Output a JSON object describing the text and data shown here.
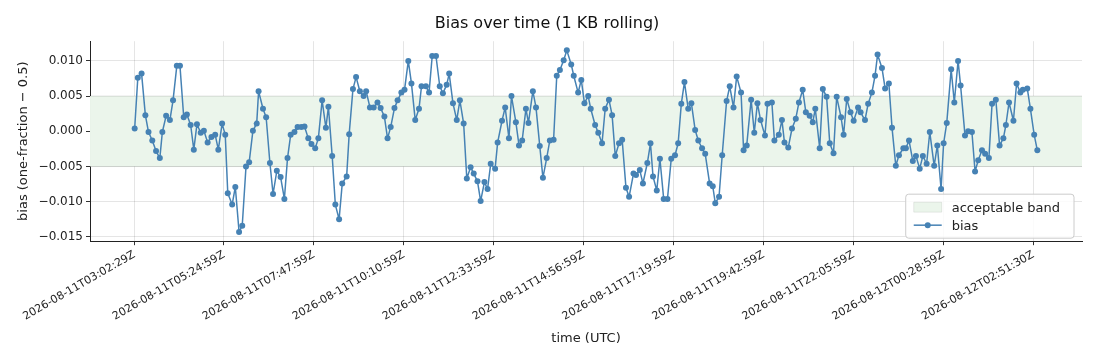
{
  "chart_data": {
    "type": "line",
    "title": "Bias over time (1 KB rolling)",
    "xlabel": "time (UTC)",
    "ylabel": "bias (one-fraction − 0.5)",
    "xlim": [
      "2026-08-11T01:52",
      "2026-08-12T04:09"
    ],
    "ylim": [
      -0.0156,
      0.0128
    ],
    "xticks": [
      {
        "value": "2026-08-11T03:02:29",
        "label": "2026-08-11T03:02:29Z"
      },
      {
        "value": "2026-08-11T05:24:59",
        "label": "2026-08-11T05:24:59Z"
      },
      {
        "value": "2026-08-11T07:47:59",
        "label": "2026-08-11T07:47:59Z"
      },
      {
        "value": "2026-08-11T10:10:59",
        "label": "2026-08-11T10:10:59Z"
      },
      {
        "value": "2026-08-11T12:33:59",
        "label": "2026-08-11T12:33:59Z"
      },
      {
        "value": "2026-08-11T14:56:59",
        "label": "2026-08-11T14:56:59Z"
      },
      {
        "value": "2026-08-11T17:19:59",
        "label": "2026-08-11T17:19:59Z"
      },
      {
        "value": "2026-08-11T19:42:59",
        "label": "2026-08-11T19:42:59Z"
      },
      {
        "value": "2026-08-11T22:05:59",
        "label": "2026-08-11T22:05:59Z"
      },
      {
        "value": "2026-08-12T00:28:59",
        "label": "2026-08-12T00:28:59Z"
      },
      {
        "value": "2026-08-12T02:51:30",
        "label": "2026-08-12T02:51:30Z"
      }
    ],
    "yticks": [
      {
        "value": -0.015,
        "label": "−0.015"
      },
      {
        "value": -0.01,
        "label": "−0.010"
      },
      {
        "value": -0.005,
        "label": "−0.005"
      },
      {
        "value": 0,
        "label": "0.000"
      },
      {
        "value": 0.005,
        "label": "0.005"
      },
      {
        "value": 0.01,
        "label": "0.010"
      }
    ],
    "grid": true,
    "legend": "bottom right",
    "marker": "circle",
    "line_style": "solid",
    "bands": [
      {
        "axis": "y",
        "from": -0.005,
        "to": 0.005,
        "label": "acceptable band",
        "color": "#ebf5eb"
      }
    ],
    "series": [
      {
        "name": "bias",
        "color": "#4682b4",
        "x": [
          "2026-08-11T03:03",
          "2026-08-11T03:08",
          "2026-08-11T03:14",
          "2026-08-11T03:20",
          "2026-08-11T03:25",
          "2026-08-11T03:31",
          "2026-08-11T03:37",
          "2026-08-11T03:43",
          "2026-08-11T03:47",
          "2026-08-11T03:53",
          "2026-08-11T03:59",
          "2026-08-11T04:04",
          "2026-08-11T04:10",
          "2026-08-11T04:15",
          "2026-08-11T04:21",
          "2026-08-11T04:26",
          "2026-08-11T04:32",
          "2026-08-11T04:37",
          "2026-08-11T04:42",
          "2026-08-11T04:48",
          "2026-08-11T04:53",
          "2026-08-11T04:59",
          "2026-08-11T05:05",
          "2026-08-11T05:11",
          "2026-08-11T05:16",
          "2026-08-11T05:22",
          "2026-08-11T05:27",
          "2026-08-11T05:31",
          "2026-08-11T05:38",
          "2026-08-11T05:43",
          "2026-08-11T05:49",
          "2026-08-11T05:54",
          "2026-08-11T06:00",
          "2026-08-11T06:05",
          "2026-08-11T06:11",
          "2026-08-11T06:17",
          "2026-08-11T06:20",
          "2026-08-11T06:27",
          "2026-08-11T06:32",
          "2026-08-11T06:38",
          "2026-08-11T06:43",
          "2026-08-11T06:49",
          "2026-08-11T06:55",
          "2026-08-11T07:01",
          "2026-08-11T07:06",
          "2026-08-11T07:11",
          "2026-08-11T07:17",
          "2026-08-11T07:22",
          "2026-08-11T07:28",
          "2026-08-11T07:33",
          "2026-08-11T07:39",
          "2026-08-11T07:44",
          "2026-08-11T07:50",
          "2026-08-11T07:55",
          "2026-08-11T08:01",
          "2026-08-11T08:07",
          "2026-08-11T08:11",
          "2026-08-11T08:17",
          "2026-08-11T08:22",
          "2026-08-11T08:28",
          "2026-08-11T08:33",
          "2026-08-11T08:40",
          "2026-08-11T08:44",
          "2026-08-11T08:50",
          "2026-08-11T08:55",
          "2026-08-11T09:01",
          "2026-08-11T09:07",
          "2026-08-11T09:11",
          "2026-08-11T09:17",
          "2026-08-11T09:23",
          "2026-08-11T09:29",
          "2026-08-11T09:34",
          "2026-08-11T09:40",
          "2026-08-11T09:45",
          "2026-08-11T09:50",
          "2026-08-11T09:56",
          "2026-08-11T10:01",
          "2026-08-11T10:07",
          "2026-08-11T10:12",
          "2026-08-11T10:18",
          "2026-08-11T10:23",
          "2026-08-11T10:29",
          "2026-08-11T10:35",
          "2026-08-11T10:39",
          "2026-08-11T10:46",
          "2026-08-11T10:51",
          "2026-08-11T10:56",
          "2026-08-11T11:02",
          "2026-08-11T11:08",
          "2026-08-11T11:13",
          "2026-08-11T11:19",
          "2026-08-11T11:23",
          "2026-08-11T11:29",
          "2026-08-11T11:35",
          "2026-08-11T11:40",
          "2026-08-11T11:46",
          "2026-08-11T11:51",
          "2026-08-11T11:57",
          "2026-08-11T12:02",
          "2026-08-11T12:08",
          "2026-08-11T12:13",
          "2026-08-11T12:19",
          "2026-08-11T12:24",
          "2026-08-11T12:29",
          "2026-08-11T12:36",
          "2026-08-11T12:40",
          "2026-08-11T12:47",
          "2026-08-11T12:52",
          "2026-08-11T12:58",
          "2026-08-11T13:02",
          "2026-08-11T13:09",
          "2026-08-11T13:14",
          "2026-08-11T13:19",
          "2026-08-11T13:25",
          "2026-08-11T13:29",
          "2026-08-11T13:36",
          "2026-08-11T13:41",
          "2026-08-11T13:47",
          "2026-08-11T13:52",
          "2026-08-11T13:58",
          "2026-08-11T14:03",
          "2026-08-11T14:09",
          "2026-08-11T14:14",
          "2026-08-11T14:19",
          "2026-08-11T14:25",
          "2026-08-11T14:30",
          "2026-08-11T14:37",
          "2026-08-11T14:41",
          "2026-08-11T14:48",
          "2026-08-11T14:53",
          "2026-08-11T14:58",
          "2026-08-11T15:04",
          "2026-08-11T15:08",
          "2026-08-11T15:15",
          "2026-08-11T15:20",
          "2026-08-11T15:26",
          "2026-08-11T15:31",
          "2026-08-11T15:37",
          "2026-08-11T15:42",
          "2026-08-11T15:47",
          "2026-08-11T15:53",
          "2026-08-11T15:58",
          "2026-08-11T16:04",
          "2026-08-11T16:09",
          "2026-08-11T16:16",
          "2026-08-11T16:20",
          "2026-08-11T16:26",
          "2026-08-11T16:31",
          "2026-08-11T16:38",
          "2026-08-11T16:43",
          "2026-08-11T16:47",
          "2026-08-11T16:53",
          "2026-08-11T16:58",
          "2026-08-11T17:04",
          "2026-08-11T17:10",
          "2026-08-11T17:16",
          "2026-08-11T17:22",
          "2026-08-11T17:27",
          "2026-08-11T17:32",
          "2026-08-11T17:37",
          "2026-08-11T17:43",
          "2026-08-11T17:48",
          "2026-08-11T17:54",
          "2026-08-11T17:59",
          "2026-08-11T18:05",
          "2026-08-11T18:10",
          "2026-08-11T18:17",
          "2026-08-11T18:22",
          "2026-08-11T18:26",
          "2026-08-11T18:32",
          "2026-08-11T18:37",
          "2026-08-11T18:44",
          "2026-08-11T18:49",
          "2026-08-11T18:55",
          "2026-08-11T19:00",
          "2026-08-11T19:07",
          "2026-08-11T19:11",
          "2026-08-11T19:16",
          "2026-08-11T19:23",
          "2026-08-11T19:28",
          "2026-08-11T19:33",
          "2026-08-11T19:38",
          "2026-08-11T19:45",
          "2026-08-11T19:49",
          "2026-08-11T19:56",
          "2026-08-11T20:00",
          "2026-08-11T20:07",
          "2026-08-11T20:12",
          "2026-08-11T20:16",
          "2026-08-11T20:22",
          "2026-08-11T20:28",
          "2026-08-11T20:34",
          "2026-08-11T20:39",
          "2026-08-11T20:45",
          "2026-08-11T20:50",
          "2026-08-11T20:56",
          "2026-08-11T21:01",
          "2026-08-11T21:05",
          "2026-08-11T21:12",
          "2026-08-11T21:17",
          "2026-08-11T21:23",
          "2026-08-11T21:28",
          "2026-08-11T21:34",
          "2026-08-11T21:39",
          "2026-08-11T21:46",
          "2026-08-11T21:50",
          "2026-08-11T21:55",
          "2026-08-11T22:01",
          "2026-08-11T22:06",
          "2026-08-11T22:13",
          "2026-08-11T22:17",
          "2026-08-11T22:24",
          "2026-08-11T22:29",
          "2026-08-11T22:35",
          "2026-08-11T22:40",
          "2026-08-11T22:44",
          "2026-08-11T22:51",
          "2026-08-11T22:56",
          "2026-08-11T23:02",
          "2026-08-11T23:07",
          "2026-08-11T23:13",
          "2026-08-11T23:18",
          "2026-08-11T23:25",
          "2026-08-11T23:29",
          "2026-08-11T23:34",
          "2026-08-11T23:40",
          "2026-08-11T23:45",
          "2026-08-11T23:51",
          "2026-08-11T23:56",
          "2026-08-12T00:02",
          "2026-08-12T00:07",
          "2026-08-12T00:14",
          "2026-08-12T00:19",
          "2026-08-12T00:25",
          "2026-08-12T00:29",
          "2026-08-12T00:34",
          "2026-08-12T00:41",
          "2026-08-12T00:46",
          "2026-08-12T00:52",
          "2026-08-12T00:56",
          "2026-08-12T01:03",
          "2026-08-12T01:08",
          "2026-08-12T01:14",
          "2026-08-12T01:19",
          "2026-08-12T01:24",
          "2026-08-12T01:30",
          "2026-08-12T01:35",
          "2026-08-12T01:41",
          "2026-08-12T01:46",
          "2026-08-12T01:52",
          "2026-08-12T01:58",
          "2026-08-12T02:04",
          "2026-08-12T02:08",
          "2026-08-12T02:13",
          "2026-08-12T02:20",
          "2026-08-12T02:25",
          "2026-08-12T02:31",
          "2026-08-12T02:35",
          "2026-08-12T02:42",
          "2026-08-12T02:47",
          "2026-08-12T02:53",
          "2026-08-12T02:58"
        ],
        "values": [
          0.0004,
          0.0076,
          0.0082,
          0.0023,
          -0.0001,
          -0.0013,
          -0.0028,
          -0.0038,
          -0.0001,
          0.0022,
          0.0016,
          0.0044,
          0.0093,
          0.0093,
          0.002,
          0.0024,
          0.0009,
          -0.0026,
          0.001,
          -0.0002,
          0.0001,
          -0.0016,
          -0.0008,
          -0.0005,
          -0.0026,
          0.0011,
          -0.0005,
          -0.0088,
          -0.0104,
          -0.0079,
          -0.0143,
          -0.0134,
          -0.005,
          -0.0044,
          0.0001,
          0.0011,
          0.0057,
          0.0032,
          0.002,
          -0.0045,
          -0.0089,
          -0.0056,
          -0.0065,
          -0.0096,
          -0.0038,
          -0.0005,
          -0.0001,
          0.0006,
          0.0006,
          0.0007,
          -0.001,
          -0.0018,
          -0.0024,
          -0.001,
          0.0044,
          0.0005,
          0.0035,
          -0.0035,
          -0.0104,
          -0.0125,
          -0.0074,
          -0.0064,
          -0.0004,
          0.006,
          0.0077,
          0.0057,
          0.005,
          0.0057,
          0.0034,
          0.0034,
          0.0041,
          0.0033,
          0.0021,
          -0.001,
          0.0006,
          0.0033,
          0.0044,
          0.0055,
          0.0059,
          0.01,
          0.0068,
          0.0016,
          0.0032,
          0.0064,
          0.0064,
          0.0055,
          0.0107,
          0.0107,
          0.0064,
          0.0054,
          0.0066,
          0.0082,
          0.004,
          0.0016,
          0.0044,
          0.0011,
          -0.0067,
          -0.0051,
          -0.006,
          -0.0071,
          -0.0099,
          -0.0072,
          -0.0082,
          -0.0046,
          -0.0053,
          -0.0016,
          0.0015,
          0.0034,
          -0.001,
          0.005,
          0.0013,
          -0.002,
          -0.0013,
          0.0032,
          0.0012,
          0.0057,
          0.0034,
          -0.0021,
          -0.0066,
          -0.0038,
          -0.0013,
          -0.0012,
          0.0079,
          0.0087,
          0.0101,
          0.0115,
          0.0095,
          0.0079,
          0.0055,
          0.0073,
          0.004,
          0.005,
          0.0032,
          0.0009,
          -0.0002,
          -0.0017,
          0.0032,
          0.0045,
          0.0023,
          -0.0035,
          -0.0017,
          -0.0012,
          -0.008,
          -0.0093,
          -0.006,
          -0.0062,
          -0.0055,
          -0.0074,
          -0.0045,
          -0.0017,
          -0.0064,
          -0.0084,
          -0.0039,
          -0.0096,
          -0.0096,
          -0.0039,
          -0.0034,
          -0.0017,
          0.0039,
          0.007,
          0.0032,
          0.004,
          0.0002,
          -0.0013,
          -0.0024,
          -0.0032,
          -0.0074,
          -0.0078,
          -0.0102,
          -0.0093,
          -0.0034,
          0.0043,
          0.0064,
          0.0034,
          0.0078,
          0.0055,
          -0.0027,
          -0.002,
          0.0045,
          -0.0002,
          0.004,
          0.0016,
          -0.0006,
          0.0039,
          0.0041,
          -0.0013,
          -0.0005,
          0.0016,
          -0.0016,
          -0.0023,
          0.0004,
          0.0018,
          0.0041,
          0.0059,
          0.0027,
          0.0022,
          0.0013,
          0.0032,
          -0.0024,
          0.006,
          0.0049,
          -0.0017,
          -0.0031,
          0.0049,
          0.002,
          -0.0005,
          0.0046,
          0.0027,
          0.0015,
          0.0034,
          0.0027,
          0.0016,
          0.0039,
          0.0055,
          0.0079,
          0.0109,
          0.009,
          0.0061,
          0.0068,
          0.0005,
          -0.0049,
          -0.0034,
          -0.0024,
          -0.0024,
          -0.0013,
          -0.0042,
          -0.0035,
          -0.0053,
          -0.0035,
          -0.0046,
          -0.0001,
          -0.0049,
          -0.002,
          -0.0082,
          -0.0017,
          0.0012,
          0.0088,
          0.0041,
          0.01,
          0.0065,
          -0.0006,
          0,
          -0.0001,
          -0.0057,
          -0.0041,
          -0.0027,
          -0.0032,
          -0.0038,
          0.0039,
          0.0045,
          -0.002,
          -0.001,
          0.0009,
          0.0041,
          0.0015,
          0.0068,
          0.0055,
          0.0059,
          0.0061,
          0.0032,
          -0.0005,
          -0.0027
        ]
      }
    ]
  }
}
